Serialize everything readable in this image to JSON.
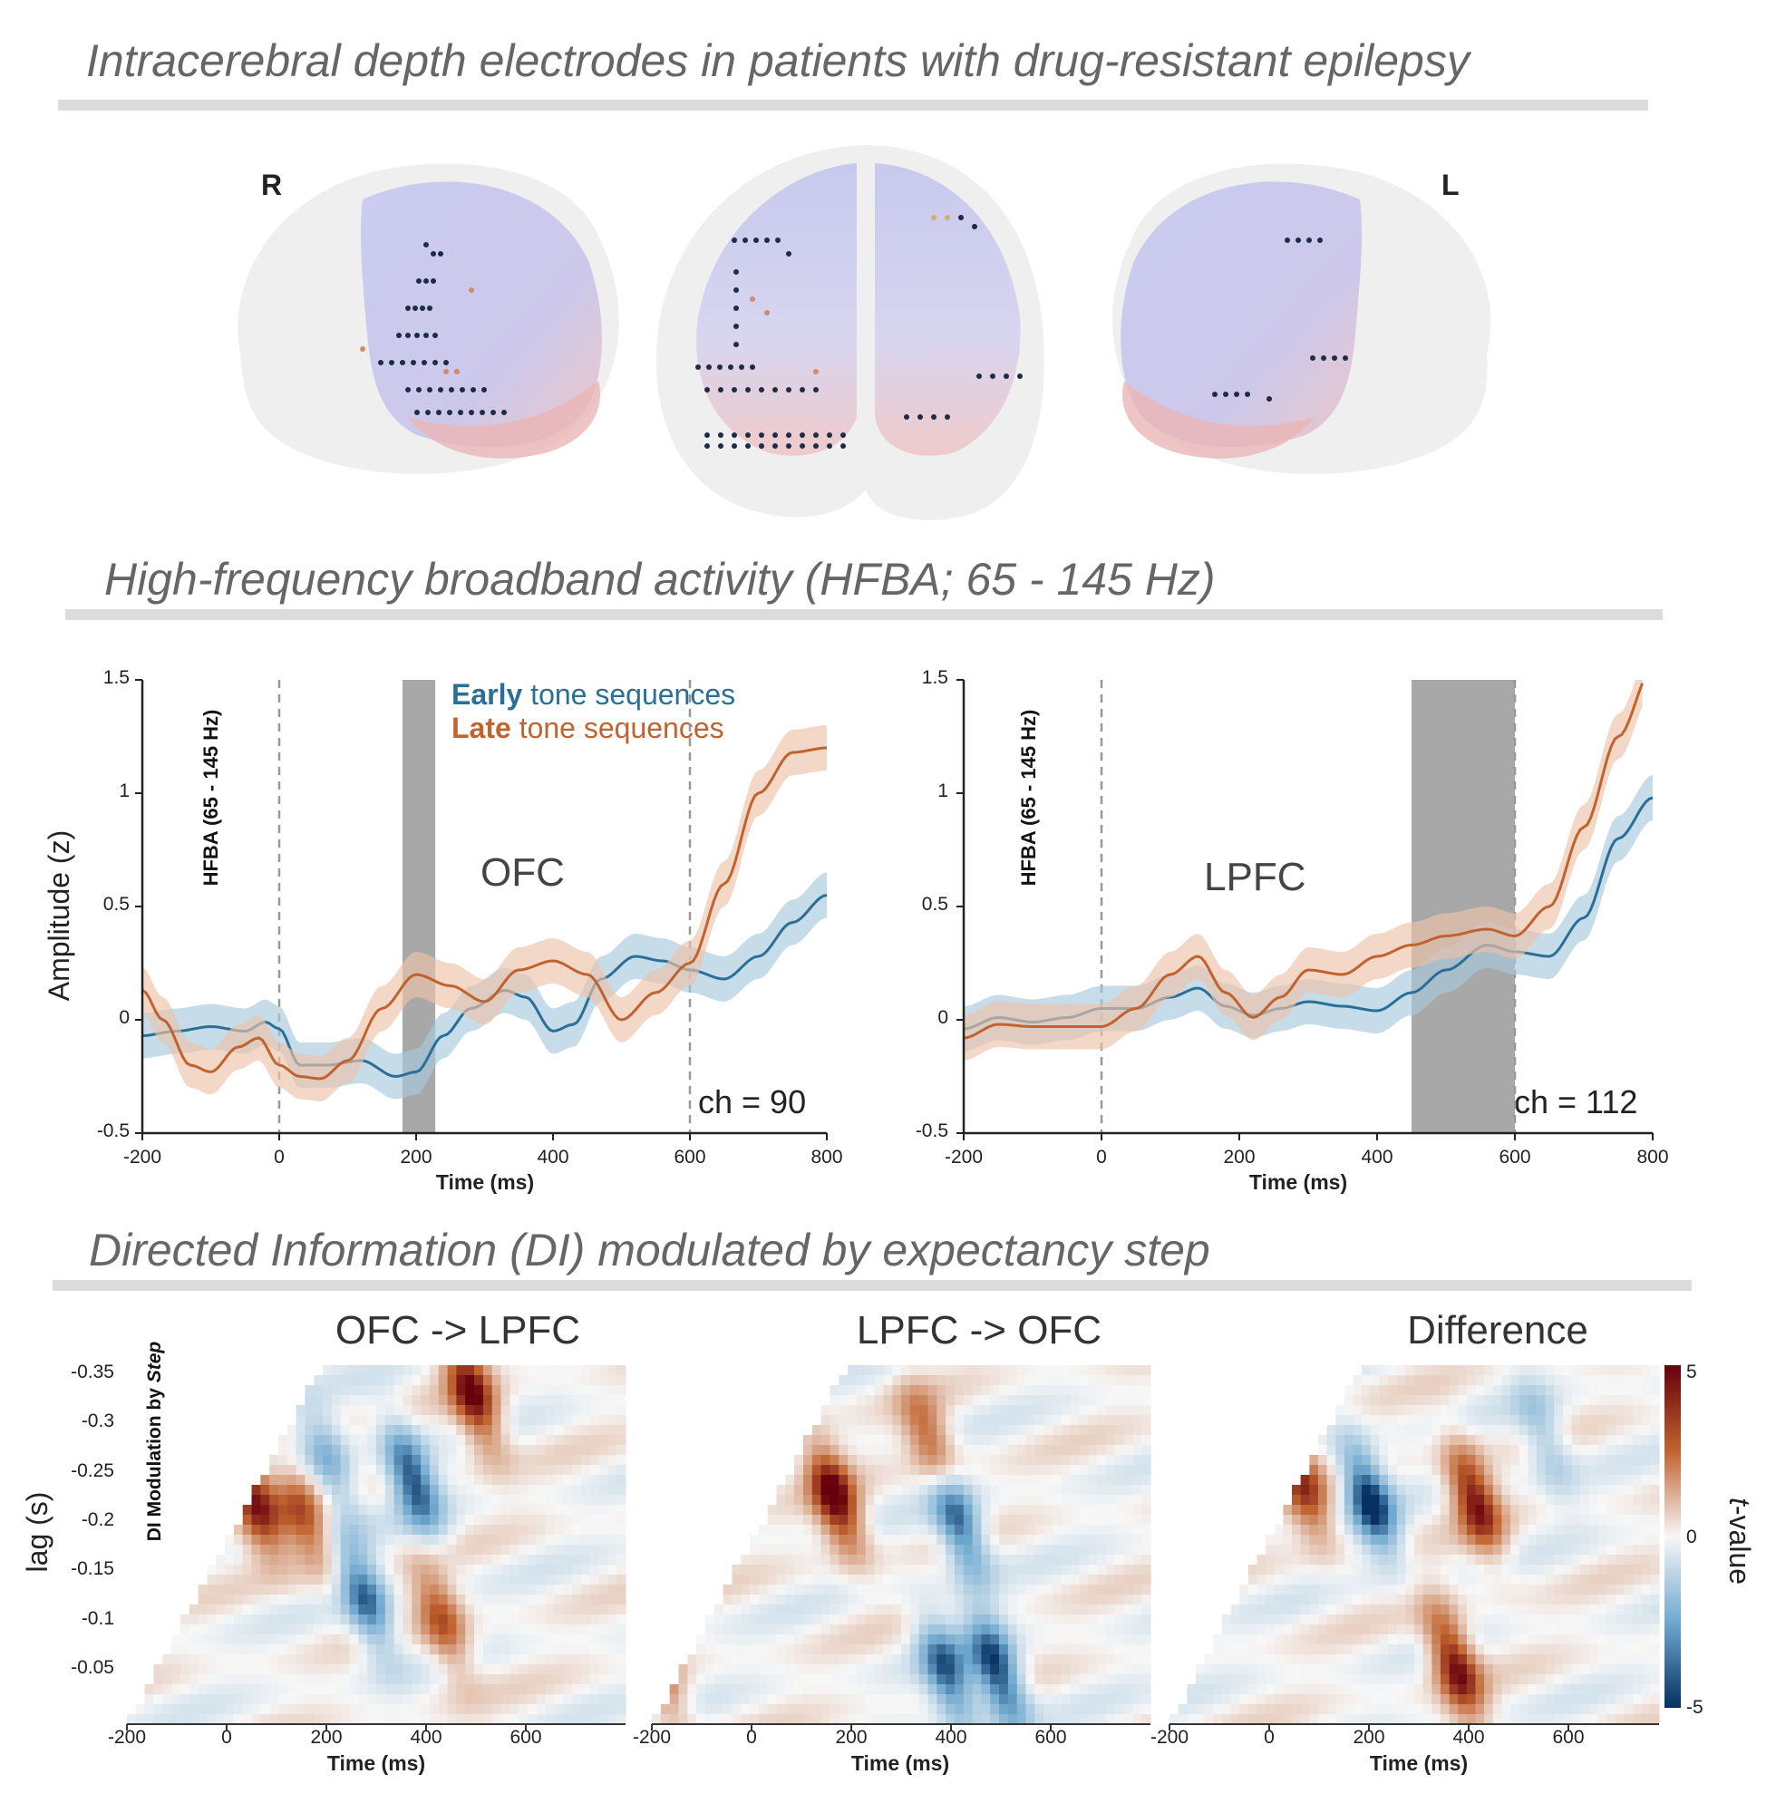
{
  "sections": {
    "electrodes_title": "Intracerebral depth electrodes in patients with drug-resistant epilepsy",
    "hfba_title": "High-frequency broadband activity (HFBA; 65 - 145 Hz)",
    "di_title": "Directed Information (DI) modulated by expectancy step"
  },
  "brain": {
    "right_label": "R",
    "left_label": "L"
  },
  "colors": {
    "early": "#2a6f97",
    "late": "#c0632f",
    "early_band": "#a9c9dd",
    "late_band": "#ecc1a9",
    "shade": "#a8a8a8",
    "ofc_region": "#e9a3a3",
    "lpfc_region": "#9b9ee6"
  },
  "legend": {
    "early_bold": "Early",
    "early_rest": " tone sequences",
    "late_bold": "Late",
    "late_rest": " tone sequences"
  },
  "hfba_panels": [
    {
      "region": "OFC",
      "channel": "ch = 90",
      "vertical_label": "HFBA (65 - 145 Hz)",
      "ylabel": "Amplitude (z)",
      "xlabel": "Time (ms)",
      "yticks": [
        "1.5",
        "1",
        "0.5",
        "0",
        "-0.5"
      ],
      "xticks": [
        "-200",
        "0",
        "200",
        "400",
        "600",
        "800"
      ]
    },
    {
      "region": "LPFC",
      "channel": "ch = 112",
      "vertical_label": "HFBA (65 - 145 Hz)",
      "xlabel": "Time (ms)",
      "yticks": [
        "1.5",
        "1",
        "0.5",
        "0",
        "-0.5"
      ],
      "xticks": [
        "-200",
        "0",
        "200",
        "400",
        "600",
        "800"
      ]
    }
  ],
  "chart_data": [
    {
      "type": "line",
      "title": "OFC",
      "xlabel": "Time (ms)",
      "ylabel": "Amplitude (z)",
      "xlim": [
        -200,
        800
      ],
      "ylim": [
        -0.5,
        1.5
      ],
      "vlines": [
        0,
        600
      ],
      "shaded_window_ms": [
        180,
        228
      ],
      "annotation": "ch = 90",
      "series": [
        {
          "name": "Early tone sequences",
          "x": [
            -200,
            -150,
            -100,
            -50,
            -20,
            0,
            30,
            70,
            120,
            170,
            200,
            240,
            280,
            330,
            360,
            400,
            430,
            470,
            520,
            560,
            600,
            650,
            700,
            750,
            800
          ],
          "y": [
            -0.07,
            -0.05,
            -0.03,
            -0.05,
            -0.01,
            -0.04,
            -0.2,
            -0.2,
            -0.18,
            -0.25,
            -0.23,
            -0.07,
            0.05,
            0.13,
            0.1,
            -0.05,
            -0.02,
            0.18,
            0.28,
            0.26,
            0.22,
            0.18,
            0.28,
            0.43,
            0.55
          ]
        },
        {
          "name": "Late tone sequences",
          "x": [
            -200,
            -170,
            -130,
            -100,
            -60,
            -30,
            0,
            30,
            60,
            100,
            150,
            200,
            250,
            300,
            350,
            400,
            450,
            500,
            550,
            600,
            650,
            700,
            750,
            800
          ],
          "y": [
            0.13,
            0.0,
            -0.2,
            -0.23,
            -0.12,
            -0.08,
            -0.2,
            -0.25,
            -0.26,
            -0.18,
            0.05,
            0.2,
            0.15,
            0.08,
            0.22,
            0.26,
            0.2,
            0.0,
            0.12,
            0.25,
            0.6,
            1.0,
            1.18,
            1.2
          ]
        }
      ],
      "legend_position": "top-center"
    },
    {
      "type": "line",
      "title": "LPFC",
      "xlabel": "Time (ms)",
      "ylabel": "",
      "xlim": [
        -200,
        800
      ],
      "ylim": [
        -0.5,
        1.5
      ],
      "vlines": [
        0,
        600
      ],
      "shaded_window_ms": [
        450,
        600
      ],
      "annotation": "ch = 112",
      "series": [
        {
          "name": "Early tone sequences",
          "x": [
            -200,
            -150,
            -100,
            -50,
            0,
            50,
            100,
            140,
            180,
            220,
            260,
            300,
            350,
            400,
            450,
            500,
            560,
            600,
            650,
            700,
            750,
            800
          ],
          "y": [
            -0.04,
            0.01,
            -0.01,
            0.01,
            0.05,
            0.05,
            0.1,
            0.14,
            0.06,
            0.02,
            0.05,
            0.08,
            0.06,
            0.04,
            0.12,
            0.22,
            0.33,
            0.3,
            0.28,
            0.45,
            0.8,
            0.98
          ]
        },
        {
          "name": "Late tone sequences",
          "x": [
            -200,
            -150,
            -100,
            -50,
            0,
            50,
            100,
            140,
            180,
            220,
            260,
            300,
            350,
            400,
            450,
            500,
            560,
            600,
            650,
            700,
            750,
            800
          ],
          "y": [
            -0.08,
            -0.02,
            -0.03,
            -0.03,
            -0.03,
            0.05,
            0.2,
            0.28,
            0.12,
            0.01,
            0.1,
            0.22,
            0.2,
            0.28,
            0.33,
            0.37,
            0.4,
            0.37,
            0.5,
            0.85,
            1.25,
            1.55
          ]
        }
      ],
      "legend_position": "none"
    },
    {
      "type": "heatmap",
      "title": "OFC -> LPFC",
      "xlabel": "Time (ms)",
      "ylabel": "lag (s)",
      "xlim": [
        -200,
        780
      ],
      "ylim": [
        0,
        -0.35
      ],
      "color_range": [
        -5,
        5
      ],
      "hotspots": [
        {
          "time": 50,
          "lag": -0.22,
          "t": 4.5
        },
        {
          "time": 480,
          "lag": -0.32,
          "t": 4.8
        },
        {
          "time": 360,
          "lag": -0.24,
          "t": -4.5
        },
        {
          "time": 270,
          "lag": -0.12,
          "t": -4.0
        },
        {
          "time": 420,
          "lag": -0.1,
          "t": 3.2
        },
        {
          "time": 200,
          "lag": -0.25,
          "t": -2.5
        },
        {
          "time": 150,
          "lag": -0.2,
          "t": 3.0
        }
      ]
    },
    {
      "type": "heatmap",
      "title": "LPFC -> OFC",
      "xlabel": "Time (ms)",
      "ylabel": "",
      "xlim": [
        -200,
        780
      ],
      "ylim": [
        0,
        -0.35
      ],
      "color_range": [
        -5,
        5
      ],
      "hotspots": [
        {
          "time": 160,
          "lag": -0.22,
          "t": 5.0
        },
        {
          "time": 400,
          "lag": -0.2,
          "t": -4.8
        },
        {
          "time": 480,
          "lag": -0.05,
          "t": -5.0
        },
        {
          "time": 380,
          "lag": -0.05,
          "t": -4.0
        },
        {
          "time": 350,
          "lag": -0.27,
          "t": 3.5
        },
        {
          "time": -180,
          "lag": -0.04,
          "t": 2.5
        }
      ]
    },
    {
      "type": "heatmap",
      "title": "Difference",
      "xlabel": "Time (ms)",
      "ylabel": "",
      "xlim": [
        -200,
        780
      ],
      "ylim": [
        0,
        -0.35
      ],
      "color_range": [
        -5,
        5
      ],
      "hotspots": [
        {
          "time": 200,
          "lag": -0.22,
          "t": -5.0
        },
        {
          "time": 410,
          "lag": -0.22,
          "t": 4.5
        },
        {
          "time": 370,
          "lag": -0.06,
          "t": 4.8
        },
        {
          "time": 70,
          "lag": -0.23,
          "t": 3.5
        },
        {
          "time": 550,
          "lag": -0.28,
          "t": -2.0
        }
      ]
    }
  ],
  "di_panels": [
    {
      "title": "OFC -> LPFC",
      "xlabel": "Time (ms)",
      "ylabel": "lag (s)",
      "vertical_label_prefix": "DI Modulation by ",
      "vertical_label_emph": "Step"
    },
    {
      "title": "LPFC -> OFC",
      "xlabel": "Time (ms)"
    },
    {
      "title": "Difference",
      "xlabel": "Time (ms)"
    }
  ],
  "di_axes": {
    "yticks": [
      "-0.35",
      "-0.3",
      "-0.25",
      "-0.2",
      "-0.15",
      "-0.1",
      "-0.05"
    ],
    "xticks": [
      "-200",
      "0",
      "200",
      "400",
      "600"
    ]
  },
  "colorbar": {
    "max_label": "5",
    "mid_label": "0",
    "min_label": "-5",
    "title_italic": "t",
    "title_rest": "-value"
  }
}
